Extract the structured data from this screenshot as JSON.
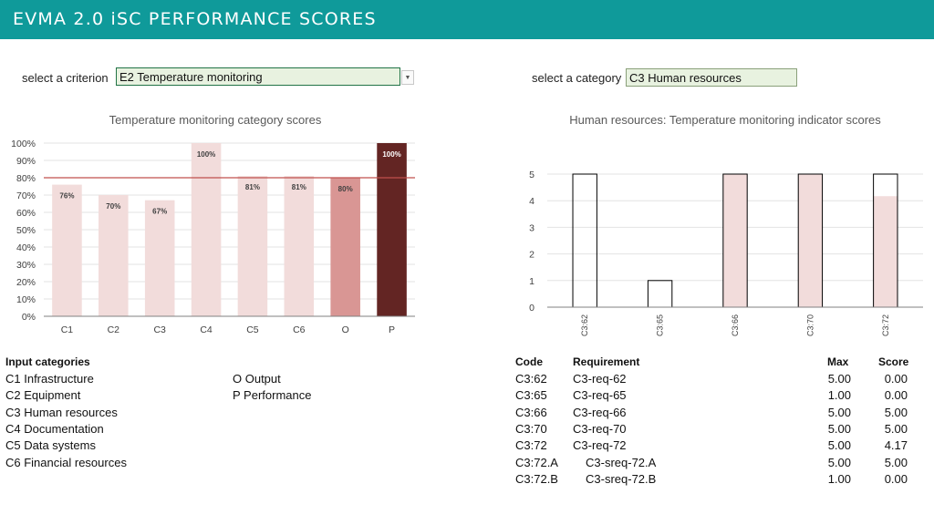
{
  "header": {
    "title": "EVMA 2.0 iSC PERFORMANCE SCORES"
  },
  "criterion_select": {
    "label": "select a criterion",
    "value": "E2 Temperature monitoring"
  },
  "category_select": {
    "label": "select a category",
    "value": "C3 Human resources"
  },
  "chart_data": [
    {
      "type": "bar",
      "title": "Temperature monitoring category scores",
      "categories": [
        "C1",
        "C2",
        "C3",
        "C4",
        "C5",
        "C6",
        "O",
        "P"
      ],
      "values": [
        76,
        70,
        67,
        100,
        81,
        81,
        80,
        100
      ],
      "data_labels": [
        "76%",
        "70%",
        "67%",
        "100%",
        "81%",
        "81%",
        "80%",
        "100%"
      ],
      "y_ticks": [
        "0%",
        "10%",
        "20%",
        "30%",
        "40%",
        "50%",
        "60%",
        "70%",
        "80%",
        "90%",
        "100%"
      ],
      "ylim": [
        0,
        100
      ],
      "reference_line": 80,
      "colors": {
        "input": "#f2dcdb",
        "output": "#d99694",
        "performance": "#632523",
        "reference": "#c0504d"
      }
    },
    {
      "type": "bar",
      "title": "Human resources: Temperature monitoring indicator scores",
      "categories": [
        "C3:62",
        "C3:65",
        "C3:66",
        "C3:70",
        "C3:72"
      ],
      "max": [
        5,
        1,
        5,
        5,
        5
      ],
      "score": [
        0,
        0,
        5,
        5,
        4.17
      ],
      "y_ticks": [
        "0",
        "1",
        "2",
        "3",
        "4",
        "5"
      ],
      "ylim": [
        0,
        5
      ],
      "colors": {
        "score": "#f2dcdb",
        "outline": "#000000"
      }
    }
  ],
  "input_categories": {
    "heading": "Input categories",
    "left": [
      "C1 Infrastructure",
      "C2 Equipment",
      "C3 Human resources",
      "C4 Documentation",
      "C5 Data systems",
      "C6 Financial resources"
    ],
    "right": [
      "O Output",
      "P Performance"
    ]
  },
  "requirements_table": {
    "headers": {
      "code": "Code",
      "requirement": "Requirement",
      "max": "Max",
      "score": "Score"
    },
    "rows": [
      {
        "code": "C3:62",
        "requirement": "C3-req-62",
        "max": "5.00",
        "score": "0.00",
        "sub": false
      },
      {
        "code": "C3:65",
        "requirement": "C3-req-65",
        "max": "1.00",
        "score": "0.00",
        "sub": false
      },
      {
        "code": "C3:66",
        "requirement": "C3-req-66",
        "max": "5.00",
        "score": "5.00",
        "sub": false
      },
      {
        "code": "C3:70",
        "requirement": "C3-req-70",
        "max": "5.00",
        "score": "5.00",
        "sub": false
      },
      {
        "code": "C3:72",
        "requirement": "C3-req-72",
        "max": "5.00",
        "score": "4.17",
        "sub": false
      },
      {
        "code": "C3:72.A",
        "requirement": "C3-sreq-72.A",
        "max": "5.00",
        "score": "5.00",
        "sub": true
      },
      {
        "code": "C3:72.B",
        "requirement": "C3-sreq-72.B",
        "max": "1.00",
        "score": "0.00",
        "sub": true
      }
    ]
  }
}
